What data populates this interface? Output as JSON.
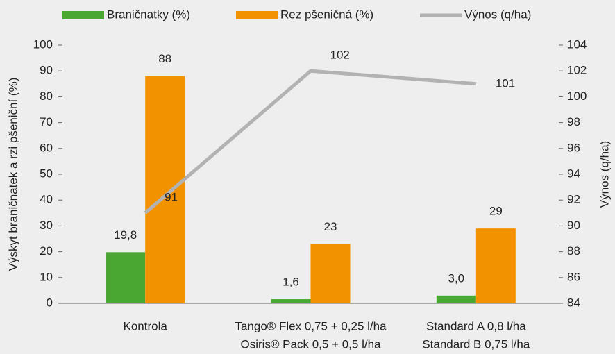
{
  "chart_data": {
    "type": "bar_line",
    "categories": [
      [
        "Kontrola"
      ],
      [
        "Tango® Flex 0,75 + 0,25 l/ha",
        "Osiris® Pack 0,5 + 0,5 l/ha"
      ],
      [
        "Standard A 0,8 l/ha",
        "Standard B 0,75 l/ha"
      ]
    ],
    "series": [
      {
        "name": "Braničnatky (%)",
        "type": "bar",
        "color": "#4aa832",
        "values": [
          19.8,
          1.6,
          3.0
        ],
        "value_labels": [
          "19,8",
          "1,6",
          "3,0"
        ]
      },
      {
        "name": "Rez pšeničná (%)",
        "type": "bar",
        "color": "#f39200",
        "values": [
          88,
          23,
          29
        ]
      },
      {
        "name": "Výnos (q/ha)",
        "type": "line",
        "axis": "y2",
        "color": "#b2b2b2",
        "values": [
          91,
          102,
          101
        ]
      }
    ],
    "ylabel": "Výskyt braničnatek a rzi pšeniční (%)",
    "y2label": "Výnos (q/ha)",
    "ylim": [
      0,
      100
    ],
    "yticks": [
      0,
      10,
      20,
      30,
      40,
      50,
      60,
      70,
      80,
      90,
      100
    ],
    "y2lim": [
      84,
      104
    ],
    "y2ticks": [
      84,
      86,
      88,
      90,
      92,
      94,
      96,
      98,
      100,
      102,
      104
    ],
    "legend": "top"
  }
}
